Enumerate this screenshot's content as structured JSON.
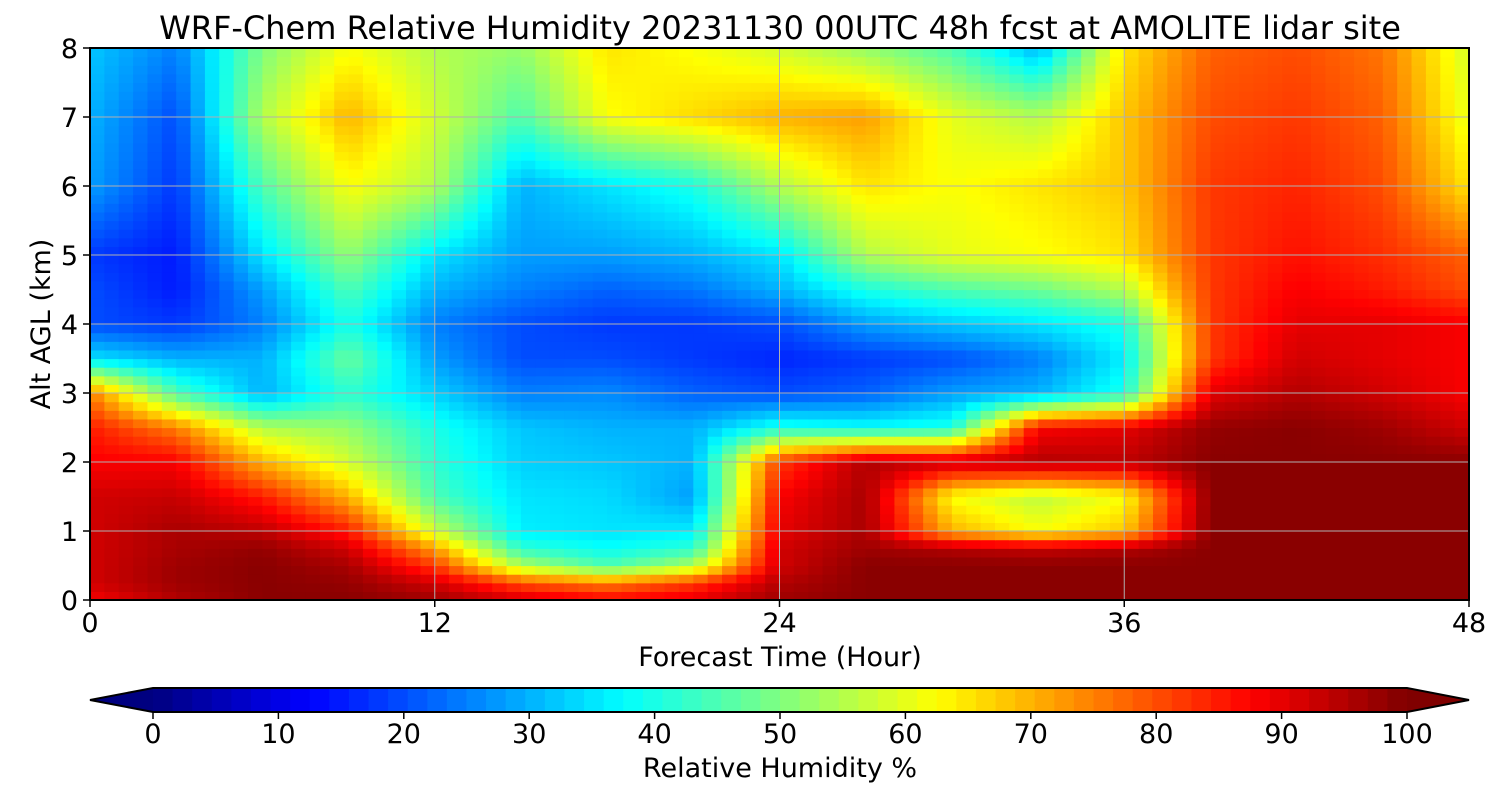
{
  "chart_data": {
    "type": "heatmap",
    "title": "WRF-Chem Relative Humidity 20231130 00UTC 48h fcst at AMOLITE lidar site",
    "xlabel": "Forecast Time (Hour)",
    "ylabel": "Alt AGL (km)",
    "xlim": [
      0,
      48
    ],
    "ylim": [
      0,
      8
    ],
    "xticks": [
      0,
      12,
      24,
      36,
      48
    ],
    "xtick_labels": [
      "0",
      "12",
      "24",
      "36",
      "48"
    ],
    "yticks": [
      0,
      1,
      2,
      3,
      4,
      5,
      6,
      7,
      8
    ],
    "ytick_labels": [
      "0",
      "1",
      "2",
      "3",
      "4",
      "5",
      "6",
      "7",
      "8"
    ],
    "grid": true,
    "colormap": "jet",
    "colorbar": {
      "label": "Relative Humidity %",
      "min": 0,
      "max": 100,
      "extend": "both",
      "ticks": [
        0,
        10,
        20,
        30,
        40,
        50,
        60,
        70,
        80,
        90,
        100
      ],
      "tick_labels": [
        "0",
        "10",
        "20",
        "30",
        "40",
        "50",
        "60",
        "70",
        "80",
        "90",
        "100"
      ],
      "orientation": "horizontal"
    },
    "x": [
      0,
      3,
      6,
      9,
      12,
      15,
      18,
      21,
      24,
      27,
      30,
      33,
      36,
      39,
      42,
      45,
      48
    ],
    "y": [
      0,
      0.25,
      0.5,
      0.75,
      1,
      1.5,
      2,
      2.5,
      3,
      3.5,
      4,
      4.5,
      5,
      6,
      7,
      8
    ],
    "z": [
      [
        88,
        95,
        99,
        99,
        97,
        92,
        88,
        90,
        97,
        99,
        99,
        99,
        99,
        99,
        99,
        99,
        99
      ],
      [
        92,
        97,
        99,
        98,
        92,
        80,
        75,
        82,
        95,
        99,
        99,
        99,
        99,
        99,
        99,
        99,
        99
      ],
      [
        92,
        97,
        99,
        96,
        82,
        55,
        45,
        55,
        92,
        99,
        99,
        99,
        99,
        99,
        99,
        99,
        99
      ],
      [
        92,
        96,
        98,
        92,
        72,
        42,
        38,
        42,
        92,
        97,
        95,
        93,
        95,
        99,
        99,
        99,
        99
      ],
      [
        92,
        96,
        94,
        85,
        58,
        36,
        35,
        36,
        90,
        96,
        70,
        62,
        68,
        99,
        99,
        99,
        99
      ],
      [
        92,
        93,
        85,
        70,
        45,
        35,
        34,
        28,
        88,
        96,
        62,
        56,
        62,
        99,
        99,
        99,
        99
      ],
      [
        88,
        88,
        70,
        58,
        42,
        33,
        32,
        30,
        82,
        95,
        93,
        95,
        94,
        99,
        99,
        99,
        99
      ],
      [
        85,
        75,
        55,
        52,
        40,
        32,
        30,
        30,
        40,
        38,
        40,
        88,
        90,
        98,
        99,
        97,
        92
      ],
      [
        75,
        45,
        30,
        42,
        33,
        25,
        26,
        22,
        20,
        22,
        28,
        30,
        40,
        90,
        95,
        92,
        88
      ],
      [
        35,
        30,
        30,
        48,
        28,
        20,
        20,
        18,
        16,
        18,
        20,
        25,
        36,
        82,
        92,
        90,
        88
      ],
      [
        20,
        18,
        25,
        40,
        25,
        20,
        18,
        18,
        20,
        28,
        32,
        35,
        40,
        82,
        90,
        90,
        88
      ],
      [
        20,
        15,
        28,
        45,
        30,
        25,
        22,
        24,
        30,
        40,
        45,
        48,
        55,
        82,
        88,
        85,
        80
      ],
      [
        18,
        15,
        35,
        52,
        35,
        28,
        28,
        30,
        35,
        55,
        60,
        62,
        65,
        82,
        86,
        83,
        78
      ],
      [
        28,
        18,
        45,
        62,
        55,
        30,
        35,
        40,
        55,
        65,
        62,
        65,
        68,
        82,
        84,
        80,
        65
      ],
      [
        30,
        20,
        55,
        70,
        58,
        45,
        62,
        66,
        70,
        72,
        60,
        55,
        68,
        80,
        82,
        78,
        60
      ],
      [
        32,
        25,
        50,
        62,
        55,
        52,
        65,
        62,
        58,
        52,
        45,
        30,
        65,
        78,
        80,
        76,
        58
      ]
    ]
  }
}
